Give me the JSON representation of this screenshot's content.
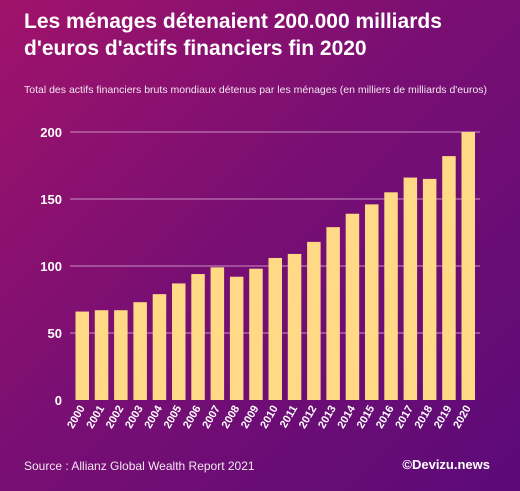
{
  "header": {
    "title_line1": "Les ménages détenaient 200.000 milliards",
    "title_line2": "d'euros d'actifs financiers fin 2020",
    "subtitle": "Total des actifs financiers bruts mondiaux détenus par les ménages (en milliers de milliards d'euros)"
  },
  "footer": {
    "source": "Source : Allianz Global Wealth Report 2021",
    "brand": "©Devizu.news"
  },
  "colors": {
    "bar": "#ffd985",
    "grid": "#c98fc2",
    "axis_text": "#ffffff"
  },
  "chart_data": {
    "type": "bar",
    "categories": [
      "2000",
      "2001",
      "2002",
      "2003",
      "2004",
      "2005",
      "2006",
      "2007",
      "2008",
      "2009",
      "2010",
      "2011",
      "2012",
      "2013",
      "2014",
      "2015",
      "2016",
      "2017",
      "2018",
      "2019",
      "2020"
    ],
    "values": [
      66,
      67,
      67,
      73,
      79,
      87,
      94,
      99,
      92,
      98,
      106,
      109,
      118,
      129,
      139,
      146,
      155,
      166,
      165,
      182,
      200
    ],
    "title": "Les ménages détenaient 200.000 milliards d'euros d'actifs financiers fin 2020",
    "subtitle": "Total des actifs financiers bruts mondiaux détenus par les ménages (en milliers de milliards d'euros)",
    "xlabel": "",
    "ylabel": "",
    "ylim": [
      0,
      200
    ],
    "yticks": [
      0,
      50,
      100,
      150,
      200
    ],
    "grid": true
  }
}
